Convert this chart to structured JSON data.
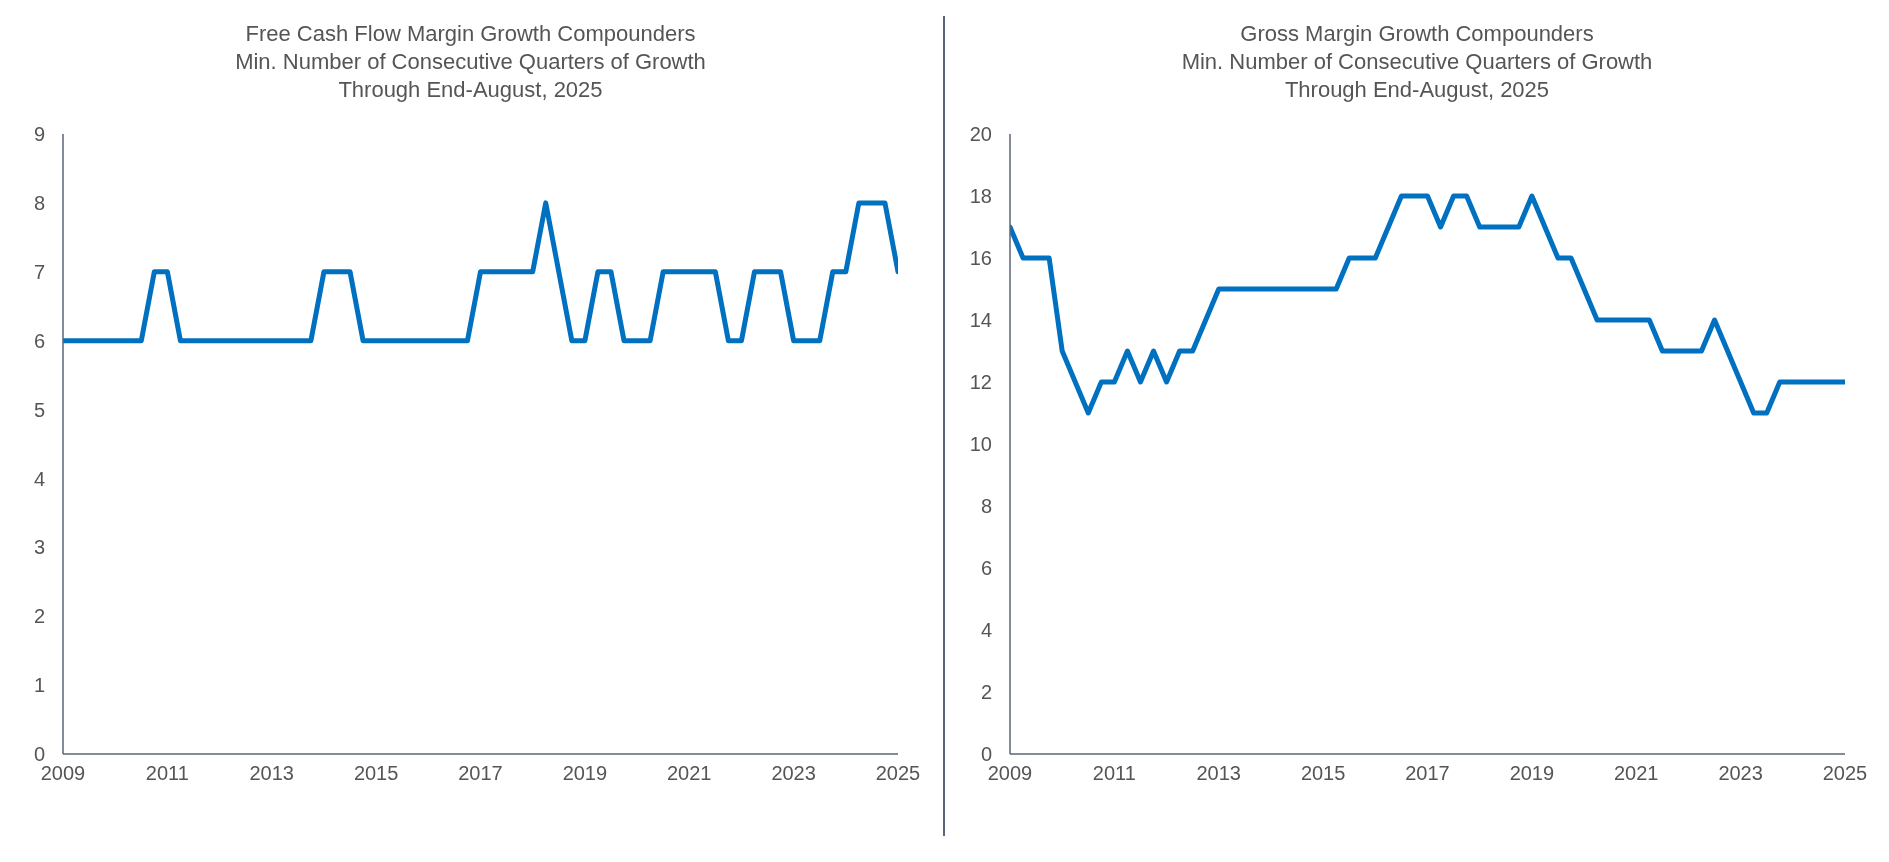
{
  "chart_data": [
    {
      "type": "line",
      "title": "Free Cash Flow Margin Growth Compounders",
      "subtitle": "Min. Number of Consecutive Quarters of Growth\nThrough End-August, 2025",
      "x": [
        2009,
        2010.5,
        2010.75,
        2011,
        2011.25,
        2013.75,
        2014,
        2014.5,
        2014.75,
        2016.75,
        2017,
        2018,
        2018.25,
        2018.75,
        2019,
        2019.25,
        2019.5,
        2019.75,
        2020.25,
        2020.5,
        2021.5,
        2021.75,
        2022,
        2022.25,
        2022.75,
        2023,
        2023.5,
        2023.75,
        2024,
        2024.25,
        2024.75,
        2025
      ],
      "series": [
        {
          "color": "#0070c0",
          "values": [
            6,
            6,
            7,
            7,
            6,
            6,
            7,
            7,
            6,
            6,
            7,
            7,
            8,
            6,
            6,
            7,
            7,
            6,
            6,
            7,
            7,
            6,
            6,
            7,
            7,
            6,
            6,
            7,
            7,
            8,
            8,
            7
          ]
        }
      ],
      "xlim": [
        2009,
        2025
      ],
      "xticks": [
        2009,
        2011,
        2013,
        2015,
        2017,
        2019,
        2021,
        2023,
        2025
      ],
      "ylim": [
        0,
        9
      ],
      "yticks": [
        0,
        1,
        2,
        3,
        4,
        5,
        6,
        7,
        8,
        9
      ],
      "grid": false,
      "legend": false,
      "marker": "none",
      "line_style": "solid"
    },
    {
      "type": "line",
      "title": "Gross Margin Growth Compounders",
      "subtitle": "Min. Number of Consecutive Quarters of Growth\nThrough End-August, 2025",
      "x": [
        2009,
        2009.25,
        2009.75,
        2010,
        2010.5,
        2010.75,
        2011,
        2011.25,
        2011.5,
        2011.75,
        2012,
        2012.25,
        2012.5,
        2013,
        2015.25,
        2015.5,
        2016,
        2016.5,
        2017,
        2017.25,
        2017.5,
        2017.75,
        2018,
        2018.75,
        2019,
        2019.5,
        2019.75,
        2020.25,
        2021.25,
        2021.5,
        2022.25,
        2022.5,
        2023.25,
        2023.5,
        2023.75,
        2025
      ],
      "series": [
        {
          "color": "#0070c0",
          "values": [
            17,
            16,
            16,
            13,
            11,
            12,
            12,
            13,
            12,
            13,
            12,
            13,
            13,
            15,
            15,
            16,
            16,
            18,
            18,
            17,
            18,
            18,
            17,
            17,
            18,
            16,
            16,
            14,
            14,
            13,
            13,
            14,
            11,
            11,
            12,
            12
          ]
        }
      ],
      "xlim": [
        2009,
        2025
      ],
      "xticks": [
        2009,
        2011,
        2013,
        2015,
        2017,
        2019,
        2021,
        2023,
        2025
      ],
      "ylim": [
        0,
        20
      ],
      "yticks": [
        0,
        2,
        4,
        6,
        8,
        10,
        12,
        14,
        16,
        18,
        20
      ],
      "grid": false,
      "legend": false,
      "marker": "none",
      "line_style": "solid"
    }
  ]
}
